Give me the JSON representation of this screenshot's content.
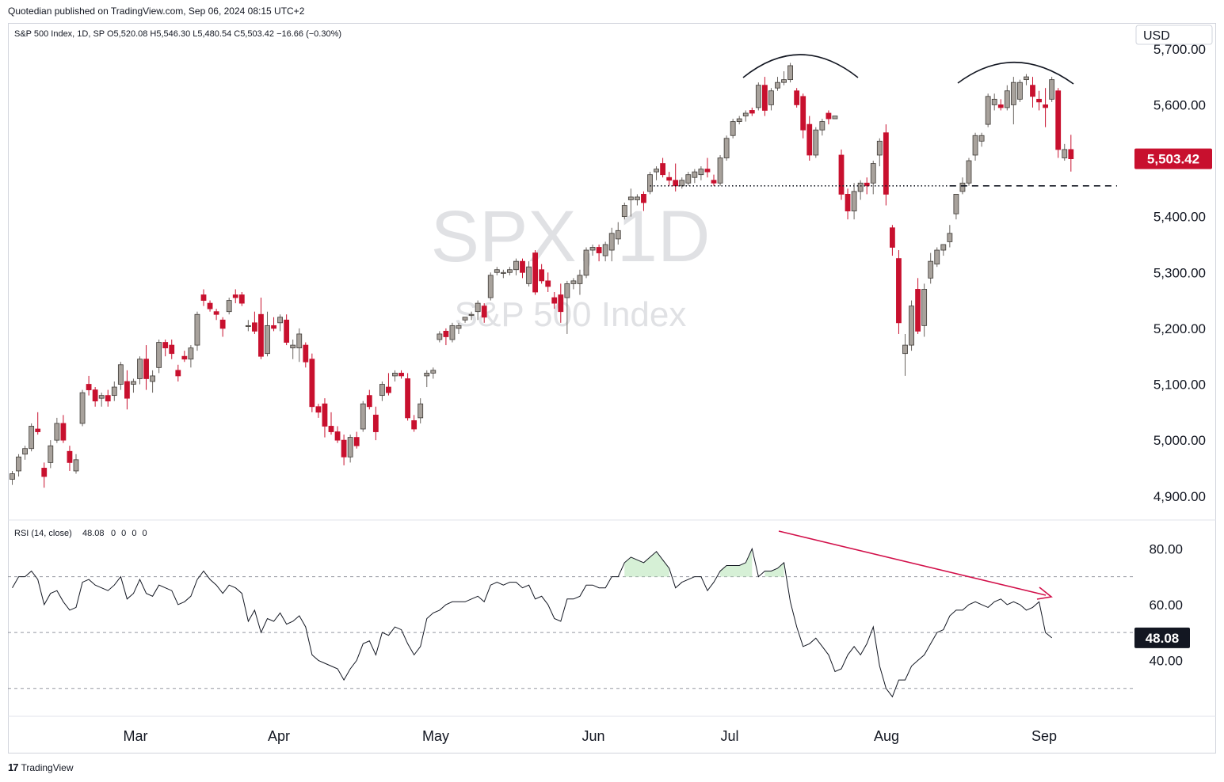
{
  "publisher_line": "Quotedian published on TradingView.com, Sep 06, 2024 08:15 UTC+2",
  "footer": {
    "brand": "TradingView",
    "logo_icon": "tradingview-logo-icon"
  },
  "colors": {
    "up": "#a8a29c",
    "down": "#c8102e",
    "rsi_line": "#131722",
    "arrow": "#d2104a",
    "rsi_fill": "#b5e3b5"
  },
  "chart_data": {
    "type": "candlestick",
    "symbol": "SPX",
    "watermark": {
      "symbol_line": "SPX, 1D",
      "name_line": "S&P 500 Index"
    },
    "legend": "S&P 500 Index, 1D, SP  O5,520.08  H5,546.30  L5,480.54  C5,503.42  −16.66 (−0.30%)",
    "currency": "USD",
    "last_price": 5503.42,
    "last_price_label": "5,503.42",
    "price_axis": {
      "ticks": [
        4900,
        5000,
        5100,
        5200,
        5300,
        5400,
        5500,
        5600,
        5700
      ],
      "tick_labels": [
        "4,900.00",
        "5,000.00",
        "5,100.00",
        "5,200.00",
        "5,300.00",
        "5,400.00",
        "5,500.00",
        "5,600.00",
        "5,700.00"
      ],
      "range": [
        4860,
        5745
      ]
    },
    "time_axis": {
      "labels": [
        "Mar",
        "Apr",
        "May",
        "Jun",
        "Jul",
        "Aug",
        "Sep"
      ]
    },
    "support_level": 5455,
    "candles": [
      [
        4930,
        4945,
        4920,
        4940
      ],
      [
        4945,
        4975,
        4935,
        4970
      ],
      [
        4975,
        4990,
        4965,
        4985
      ],
      [
        4985,
        5030,
        4980,
        5025
      ],
      [
        5020,
        5050,
        5010,
        5015
      ],
      [
        4950,
        4960,
        4915,
        4935
      ],
      [
        4960,
        5000,
        4950,
        4990
      ],
      [
        5000,
        5040,
        4995,
        5030
      ],
      [
        5030,
        5045,
        4995,
        5000
      ],
      [
        4980,
        4990,
        4945,
        4960
      ],
      [
        4945,
        4975,
        4940,
        4965
      ],
      [
        5030,
        5090,
        5025,
        5085
      ],
      [
        5100,
        5115,
        5080,
        5090
      ],
      [
        5090,
        5095,
        5060,
        5070
      ],
      [
        5075,
        5085,
        5060,
        5080
      ],
      [
        5080,
        5090,
        5060,
        5070
      ],
      [
        5080,
        5105,
        5070,
        5095
      ],
      [
        5100,
        5140,
        5090,
        5135
      ],
      [
        5105,
        5125,
        5055,
        5075
      ],
      [
        5100,
        5110,
        5085,
        5105
      ],
      [
        5110,
        5150,
        5100,
        5145
      ],
      [
        5145,
        5170,
        5090,
        5110
      ],
      [
        5105,
        5125,
        5085,
        5115
      ],
      [
        5130,
        5180,
        5120,
        5175
      ],
      [
        5175,
        5180,
        5150,
        5165
      ],
      [
        5170,
        5180,
        5145,
        5155
      ],
      [
        5125,
        5135,
        5105,
        5115
      ],
      [
        5150,
        5160,
        5140,
        5145
      ],
      [
        5145,
        5170,
        5130,
        5165
      ],
      [
        5170,
        5230,
        5160,
        5225
      ],
      [
        5260,
        5270,
        5240,
        5250
      ],
      [
        5245,
        5250,
        5230,
        5235
      ],
      [
        5230,
        5235,
        5215,
        5225
      ],
      [
        5215,
        5220,
        5185,
        5200
      ],
      [
        5230,
        5255,
        5225,
        5250
      ],
      [
        5260,
        5270,
        5245,
        5255
      ],
      [
        5260,
        5265,
        5240,
        5245
      ],
      [
        5205,
        5215,
        5195,
        5205
      ],
      [
        5210,
        5230,
        5190,
        5195
      ],
      [
        5225,
        5255,
        5145,
        5150
      ],
      [
        5155,
        5230,
        5150,
        5205
      ],
      [
        5205,
        5220,
        5195,
        5200
      ],
      [
        5210,
        5225,
        5195,
        5220
      ],
      [
        5215,
        5225,
        5170,
        5175
      ],
      [
        5165,
        5180,
        5145,
        5170
      ],
      [
        5165,
        5200,
        5140,
        5190
      ],
      [
        5170,
        5175,
        5130,
        5140
      ],
      [
        5145,
        5155,
        5050,
        5060
      ],
      [
        5060,
        5065,
        5040,
        5050
      ],
      [
        5065,
        5075,
        5005,
        5025
      ],
      [
        5025,
        5050,
        5010,
        5015
      ],
      [
        5015,
        5025,
        4995,
        5000
      ],
      [
        5000,
        5010,
        4955,
        4970
      ],
      [
        4970,
        5010,
        4960,
        5005
      ],
      [
        5005,
        5015,
        4985,
        4990
      ],
      [
        5020,
        5070,
        5015,
        5065
      ],
      [
        5080,
        5090,
        5055,
        5060
      ],
      [
        5045,
        5060,
        5000,
        5015
      ],
      [
        5080,
        5105,
        5070,
        5100
      ],
      [
        5095,
        5120,
        5080,
        5085
      ],
      [
        5115,
        5125,
        5105,
        5120
      ],
      [
        5120,
        5125,
        5110,
        5115
      ],
      [
        5110,
        5120,
        5035,
        5040
      ],
      [
        5035,
        5045,
        5015,
        5020
      ],
      [
        5040,
        5075,
        5030,
        5065
      ],
      [
        5115,
        5125,
        5095,
        5120
      ],
      [
        5120,
        5130,
        5110,
        5125
      ],
      [
        5180,
        5195,
        5175,
        5190
      ],
      [
        5195,
        5200,
        5170,
        5185
      ],
      [
        5180,
        5210,
        5175,
        5205
      ],
      [
        5200,
        5210,
        5190,
        5205
      ],
      [
        5215,
        5220,
        5210,
        5220
      ],
      [
        5225,
        5230,
        5215,
        5225
      ],
      [
        5230,
        5250,
        5215,
        5245
      ],
      [
        5240,
        5245,
        5210,
        5220
      ],
      [
        5255,
        5300,
        5250,
        5295
      ],
      [
        5300,
        5310,
        5295,
        5305
      ],
      [
        5300,
        5305,
        5290,
        5300
      ],
      [
        5300,
        5310,
        5295,
        5305
      ],
      [
        5305,
        5325,
        5295,
        5320
      ],
      [
        5320,
        5325,
        5290,
        5300
      ],
      [
        5280,
        5320,
        5275,
        5310
      ],
      [
        5335,
        5340,
        5260,
        5265
      ],
      [
        5305,
        5315,
        5280,
        5285
      ],
      [
        5285,
        5300,
        5265,
        5275
      ],
      [
        5255,
        5265,
        5235,
        5245
      ],
      [
        5260,
        5280,
        5210,
        5230
      ],
      [
        5255,
        5285,
        5190,
        5280
      ],
      [
        5280,
        5290,
        5270,
        5285
      ],
      [
        5280,
        5305,
        5260,
        5295
      ],
      [
        5295,
        5345,
        5290,
        5340
      ],
      [
        5340,
        5350,
        5330,
        5345
      ],
      [
        5345,
        5350,
        5320,
        5335
      ],
      [
        5330,
        5355,
        5320,
        5350
      ],
      [
        5340,
        5380,
        5320,
        5370
      ],
      [
        5360,
        5390,
        5350,
        5375
      ],
      [
        5400,
        5425,
        5395,
        5420
      ],
      [
        5430,
        5450,
        5400,
        5435
      ],
      [
        5430,
        5440,
        5420,
        5435
      ],
      [
        5440,
        5445,
        5410,
        5425
      ],
      [
        5445,
        5480,
        5440,
        5475
      ],
      [
        5480,
        5490,
        5465,
        5485
      ],
      [
        5495,
        5505,
        5470,
        5475
      ],
      [
        5470,
        5480,
        5455,
        5465
      ],
      [
        5465,
        5495,
        5445,
        5455
      ],
      [
        5455,
        5470,
        5450,
        5465
      ],
      [
        5460,
        5480,
        5455,
        5475
      ],
      [
        5470,
        5485,
        5460,
        5480
      ],
      [
        5475,
        5490,
        5465,
        5485
      ],
      [
        5485,
        5505,
        5470,
        5480
      ],
      [
        5465,
        5475,
        5455,
        5460
      ],
      [
        5460,
        5510,
        5455,
        5505
      ],
      [
        5505,
        5545,
        5500,
        5540
      ],
      [
        5545,
        5575,
        5540,
        5570
      ],
      [
        5570,
        5580,
        5565,
        5575
      ],
      [
        5580,
        5590,
        5570,
        5585
      ],
      [
        5590,
        5595,
        5580,
        5585
      ],
      [
        5595,
        5640,
        5590,
        5635
      ],
      [
        5635,
        5650,
        5580,
        5590
      ],
      [
        5600,
        5630,
        5590,
        5625
      ],
      [
        5630,
        5650,
        5625,
        5640
      ],
      [
        5640,
        5660,
        5635,
        5645
      ],
      [
        5645,
        5675,
        5640,
        5670
      ],
      [
        5625,
        5630,
        5595,
        5600
      ],
      [
        5615,
        5620,
        5540,
        5555
      ],
      [
        5565,
        5580,
        5500,
        5510
      ],
      [
        5510,
        5560,
        5505,
        5555
      ],
      [
        5555,
        5575,
        5545,
        5570
      ],
      [
        5585,
        5590,
        5565,
        5575
      ],
      [
        5575,
        5580,
        5575,
        5580
      ],
      [
        5510,
        5520,
        5430,
        5440
      ],
      [
        5440,
        5450,
        5395,
        5410
      ],
      [
        5410,
        5460,
        5395,
        5445
      ],
      [
        5445,
        5465,
        5430,
        5460
      ],
      [
        5460,
        5470,
        5440,
        5455
      ],
      [
        5460,
        5500,
        5440,
        5495
      ],
      [
        5510,
        5540,
        5490,
        5535
      ],
      [
        5550,
        5565,
        5420,
        5440
      ],
      [
        5380,
        5385,
        5330,
        5345
      ],
      [
        5325,
        5340,
        5190,
        5210
      ],
      [
        5155,
        5190,
        5115,
        5170
      ],
      [
        5170,
        5250,
        5160,
        5240
      ],
      [
        5270,
        5290,
        5190,
        5195
      ],
      [
        5205,
        5280,
        5185,
        5270
      ],
      [
        5290,
        5335,
        5280,
        5320
      ],
      [
        5315,
        5345,
        5310,
        5340
      ],
      [
        5340,
        5350,
        5330,
        5350
      ],
      [
        5355,
        5385,
        5345,
        5370
      ],
      [
        5405,
        5440,
        5395,
        5440
      ],
      [
        5445,
        5470,
        5440,
        5460
      ],
      [
        5460,
        5505,
        5455,
        5500
      ],
      [
        5510,
        5550,
        5500,
        5545
      ],
      [
        5535,
        5550,
        5525,
        5545
      ],
      [
        5565,
        5620,
        5560,
        5615
      ],
      [
        5600,
        5620,
        5590,
        5610
      ],
      [
        5600,
        5610,
        5590,
        5595
      ],
      [
        5595,
        5635,
        5590,
        5625
      ],
      [
        5600,
        5650,
        5565,
        5640
      ],
      [
        5610,
        5645,
        5605,
        5640
      ],
      [
        5645,
        5655,
        5635,
        5650
      ],
      [
        5635,
        5650,
        5595,
        5615
      ],
      [
        5610,
        5625,
        5590,
        5605
      ],
      [
        5600,
        5630,
        5560,
        5595
      ],
      [
        5610,
        5650,
        5605,
        5645
      ],
      [
        5625,
        5630,
        5505,
        5520
      ],
      [
        5505,
        5530,
        5500,
        5520
      ],
      [
        5520,
        5546.3,
        5480.54,
        5503.42
      ]
    ],
    "rsi": {
      "label": "RSI (14, close)",
      "value": 48.08,
      "value_label": "48.08",
      "extra_values": "0 0 0 0",
      "range": [
        20,
        90
      ],
      "levels": [
        70,
        50,
        30
      ],
      "ticks": [
        40,
        60,
        80
      ],
      "tick_labels": [
        "40.00",
        "60.00",
        "80.00"
      ],
      "values": [
        66,
        70,
        70,
        72,
        69,
        60,
        64,
        65,
        61,
        58,
        59,
        68,
        69,
        67,
        66,
        65,
        67,
        70,
        62,
        64,
        69,
        64,
        63,
        67,
        66,
        65,
        60,
        61,
        63,
        69,
        72,
        69,
        67,
        64,
        67,
        66,
        64,
        54,
        58,
        50,
        55,
        54,
        57,
        53,
        54,
        56,
        52,
        42,
        40,
        39,
        38,
        37,
        33,
        37,
        40,
        46,
        47,
        42,
        50,
        49,
        52,
        51,
        46,
        42,
        45,
        55,
        57,
        58,
        60,
        61,
        61,
        61,
        62,
        63,
        61,
        67,
        68,
        67,
        68,
        68,
        66,
        67,
        62,
        63,
        60,
        55,
        54,
        62,
        62,
        63,
        67,
        67,
        66,
        66,
        70,
        70,
        75,
        77,
        76,
        75,
        77,
        79,
        76,
        73,
        66,
        68,
        69,
        70,
        70,
        65,
        68,
        72,
        74,
        74,
        74,
        75,
        80,
        70,
        72,
        72,
        73,
        75,
        61,
        52,
        45,
        46,
        48,
        45,
        42,
        36,
        37,
        42,
        45,
        42,
        46,
        52,
        38,
        30,
        27,
        33,
        33,
        38,
        40,
        42,
        46,
        50,
        51,
        56,
        58,
        58,
        60,
        61,
        60,
        59,
        61,
        62,
        60,
        61,
        60,
        58,
        59,
        61,
        50,
        48.08
      ]
    },
    "annotations": [
      "dotted-support-line",
      "dashed-support-extension",
      "arc-top-july",
      "arc-top-august",
      "rsi-divergence-arrow"
    ]
  }
}
